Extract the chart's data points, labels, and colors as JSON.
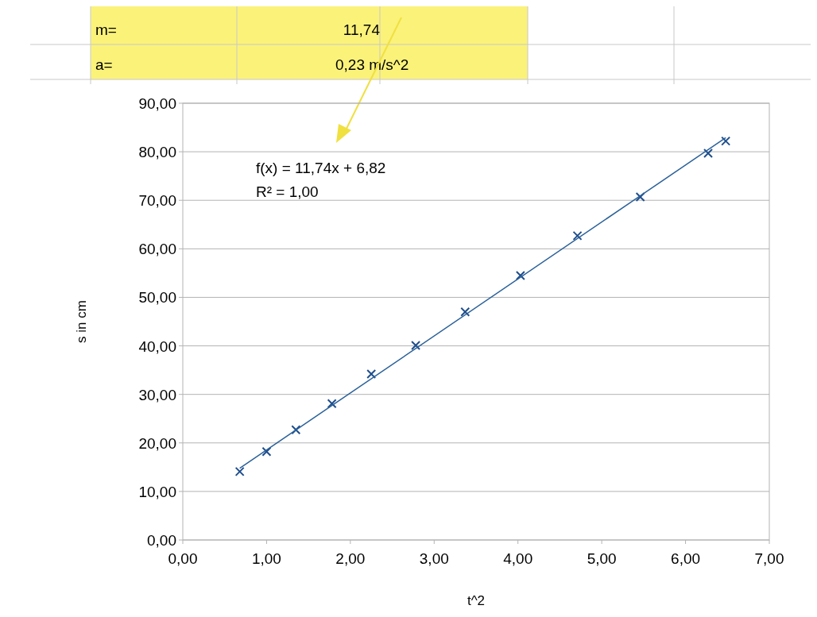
{
  "chart_data": {
    "type": "scatter",
    "xlabel": "t^2",
    "ylabel": "s in cm",
    "annotations": [
      "m=",
      "11,74",
      "a=",
      "0,23 m/s^2",
      "f(x) = 11,74x + 6,82",
      "R² = 1,00"
    ],
    "series": [
      {
        "color": "#1f4e8c",
        "marker": "cross",
        "x": [
          0.68,
          1.0,
          1.35,
          1.78,
          2.25,
          2.78,
          3.37,
          4.03,
          4.71,
          5.46,
          6.27,
          6.48
        ],
        "values": [
          14.1,
          18.2,
          22.7,
          28.1,
          34.2,
          40.1,
          47.0,
          54.5,
          62.7,
          70.7,
          79.7,
          82.2
        ]
      },
      {
        "type": "line",
        "color": "#2a6099",
        "marker": "none",
        "x": [
          0.68,
          6.48
        ],
        "values": [
          14.8,
          82.9
        ]
      }
    ],
    "xlim": [
      0,
      7
    ],
    "ylim": [
      0,
      90
    ],
    "xticks": [
      {
        "value": 0,
        "label": "0,00"
      },
      {
        "value": 1,
        "label": "1,00"
      },
      {
        "value": 2,
        "label": "2,00"
      },
      {
        "value": 3,
        "label": "3,00"
      },
      {
        "value": 4,
        "label": "4,00"
      },
      {
        "value": 5,
        "label": "5,00"
      },
      {
        "value": 6,
        "label": "6,00"
      },
      {
        "value": 7,
        "label": "7,00"
      }
    ],
    "yticks": [
      {
        "value": 0,
        "label": "0,00"
      },
      {
        "value": 10,
        "label": "10,00"
      },
      {
        "value": 20,
        "label": "20,00"
      },
      {
        "value": 30,
        "label": "30,00"
      },
      {
        "value": 40,
        "label": "40,00"
      },
      {
        "value": 50,
        "label": "50,00"
      },
      {
        "value": 60,
        "label": "60,00"
      },
      {
        "value": 70,
        "label": "70,00"
      },
      {
        "value": 80,
        "label": "80,00"
      },
      {
        "value": 90,
        "label": "90,00"
      }
    ],
    "grid": "y"
  }
}
